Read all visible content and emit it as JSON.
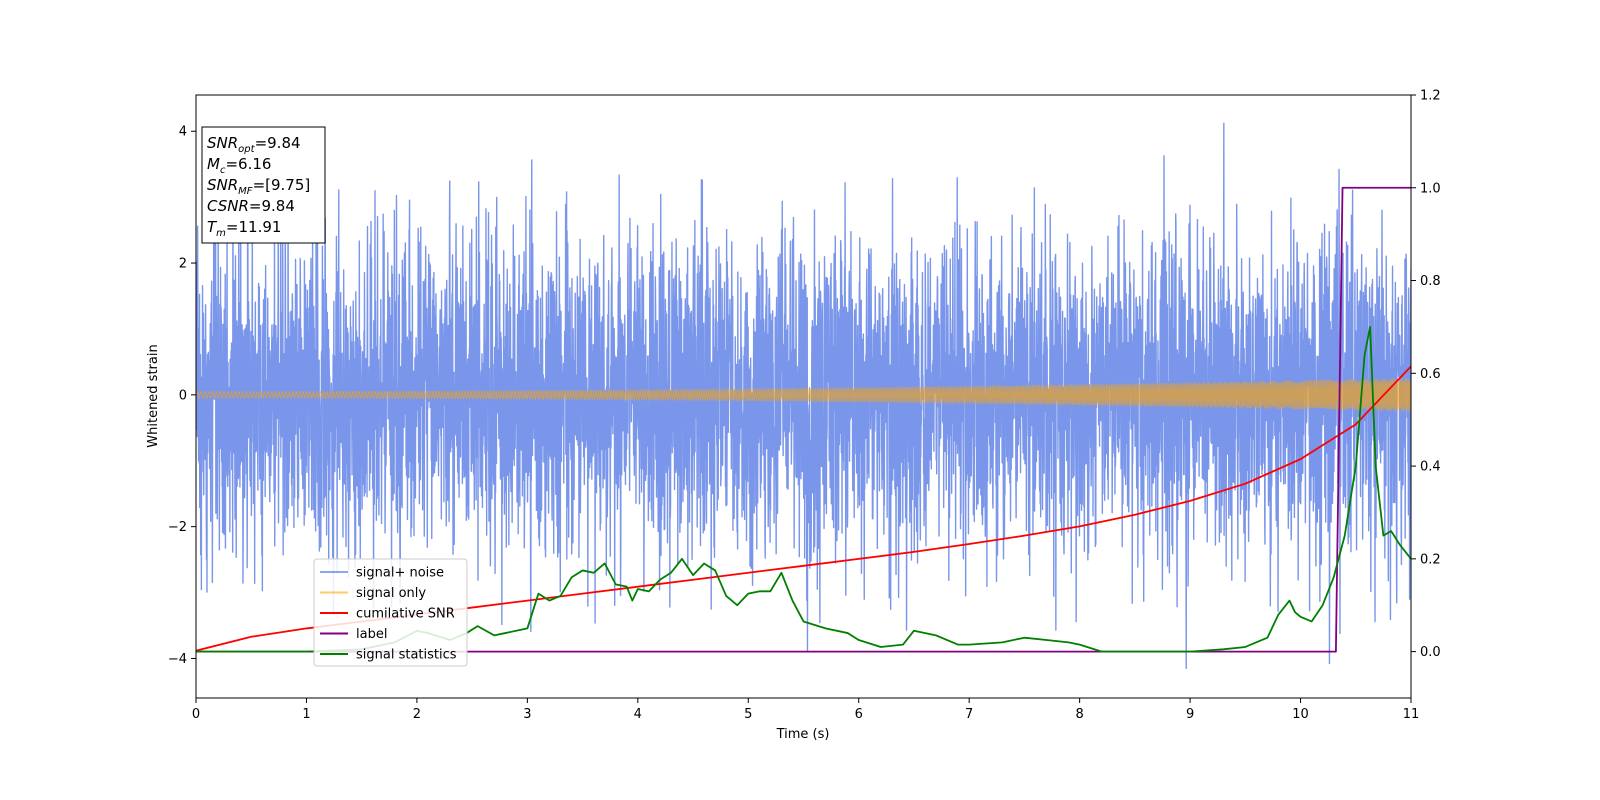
{
  "chart_data": {
    "type": "line",
    "xlabel": "Time (s)",
    "ylabel": "Whitened strain",
    "xlim": [
      0,
      11
    ],
    "ylim": [
      -4.6,
      4.55
    ],
    "ylim_right": [
      -0.1,
      1.2
    ],
    "xticks": [
      0,
      1,
      2,
      3,
      4,
      5,
      6,
      7,
      8,
      9,
      10,
      11
    ],
    "yticks": [
      -4,
      -2,
      0,
      2,
      4
    ],
    "yticks_right": [
      0.0,
      0.2,
      0.4,
      0.6,
      0.8,
      1.0,
      1.2
    ],
    "grid": false,
    "legend_position": "lower-left",
    "annotation": {
      "lines": [
        {
          "base": "SNR",
          "sub": "opt",
          "value": "=9.84"
        },
        {
          "base": "M",
          "sub": "c",
          "value": "=6.16"
        },
        {
          "base": "SNR",
          "sub": "MF",
          "value": "=[9.75]"
        },
        {
          "base": "CSNR",
          "sub": "",
          "value": "=9.84"
        },
        {
          "base": "T",
          "sub": "m",
          "value": "=11.91"
        }
      ]
    },
    "series": [
      {
        "name": "signal+ noise",
        "axis": "left",
        "color": "#4169e1",
        "kind": "noise",
        "typical_range": [
          -2.5,
          2.5
        ],
        "extremes": [
          -4.15,
          4.12
        ]
      },
      {
        "name": "signal only",
        "axis": "left",
        "color": "#ffa500",
        "kind": "chirp",
        "amplitude_start": 0.05,
        "amplitude_end": 0.25
      },
      {
        "name": "cumilative SNR",
        "axis": "right",
        "color": "#ff0000",
        "x": [
          0,
          0.5,
          1,
          1.5,
          2,
          2.5,
          3,
          3.5,
          4,
          4.5,
          5,
          5.5,
          6,
          6.5,
          7,
          7.5,
          8,
          8.5,
          9,
          9.5,
          10,
          10.5,
          11
        ],
        "values": [
          0.002,
          0.032,
          0.05,
          0.065,
          0.08,
          0.095,
          0.11,
          0.125,
          0.14,
          0.155,
          0.17,
          0.185,
          0.2,
          0.215,
          0.232,
          0.25,
          0.27,
          0.295,
          0.325,
          0.362,
          0.415,
          0.49,
          0.615
        ]
      },
      {
        "name": "label",
        "axis": "right",
        "color": "#800080",
        "x": [
          0,
          10.32,
          10.38,
          11
        ],
        "values": [
          0,
          0,
          1.0,
          1.0
        ]
      },
      {
        "name": "signal statistics",
        "axis": "right",
        "color": "#008000",
        "x": [
          0,
          0.5,
          1.0,
          1.5,
          1.8,
          2.0,
          2.1,
          2.3,
          2.45,
          2.55,
          2.7,
          2.8,
          3.0,
          3.1,
          3.2,
          3.3,
          3.4,
          3.5,
          3.6,
          3.7,
          3.8,
          3.9,
          3.95,
          4.0,
          4.1,
          4.2,
          4.3,
          4.4,
          4.5,
          4.6,
          4.7,
          4.8,
          4.9,
          5.0,
          5.1,
          5.2,
          5.3,
          5.4,
          5.5,
          5.7,
          5.9,
          6.0,
          6.2,
          6.4,
          6.5,
          6.7,
          6.9,
          7.0,
          7.3,
          7.5,
          7.7,
          7.9,
          8.0,
          8.2,
          8.5,
          9.0,
          9.3,
          9.5,
          9.7,
          9.8,
          9.9,
          9.95,
          10.0,
          10.1,
          10.2,
          10.3,
          10.4,
          10.5,
          10.58,
          10.63,
          10.68,
          10.75,
          10.82,
          10.9,
          11.0
        ],
        "values": [
          0.0,
          0.0,
          0.0,
          0.005,
          0.02,
          0.045,
          0.04,
          0.025,
          0.04,
          0.055,
          0.035,
          0.04,
          0.05,
          0.125,
          0.11,
          0.12,
          0.16,
          0.175,
          0.17,
          0.19,
          0.145,
          0.14,
          0.11,
          0.135,
          0.13,
          0.155,
          0.17,
          0.2,
          0.165,
          0.19,
          0.175,
          0.12,
          0.1,
          0.125,
          0.13,
          0.13,
          0.17,
          0.11,
          0.065,
          0.05,
          0.04,
          0.025,
          0.01,
          0.015,
          0.045,
          0.035,
          0.015,
          0.015,
          0.02,
          0.03,
          0.025,
          0.02,
          0.015,
          0.0,
          0.0,
          0.0,
          0.005,
          0.01,
          0.03,
          0.08,
          0.11,
          0.085,
          0.075,
          0.065,
          0.1,
          0.16,
          0.25,
          0.4,
          0.64,
          0.7,
          0.4,
          0.25,
          0.26,
          0.23,
          0.2
        ]
      }
    ]
  }
}
